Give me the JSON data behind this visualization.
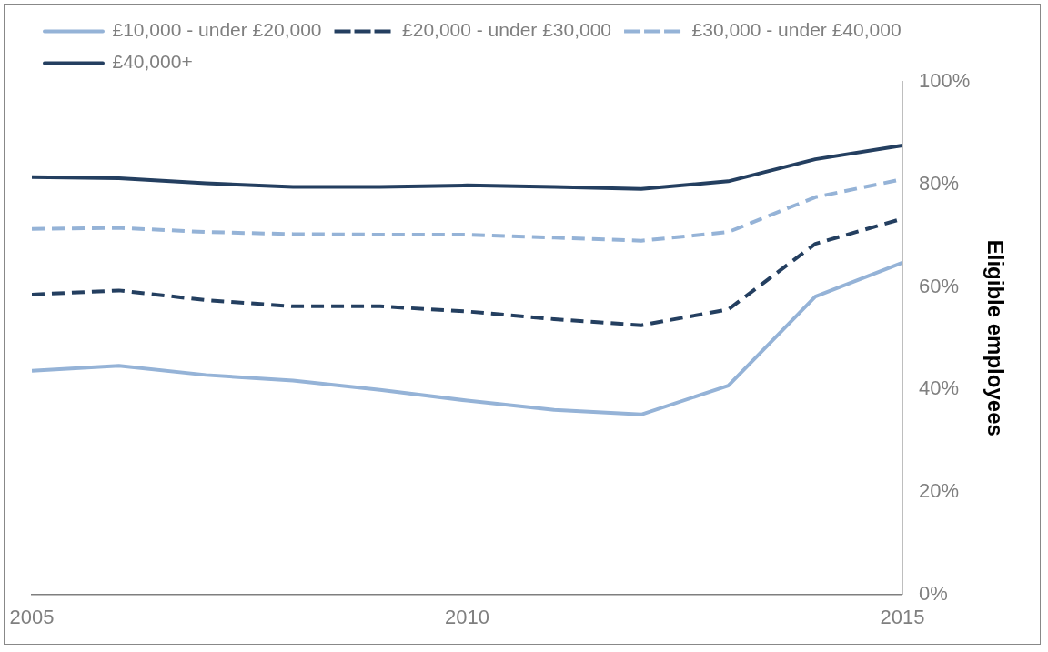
{
  "chart_data": {
    "type": "line",
    "ylabel": "Eligible employees",
    "x": [
      2005,
      2006,
      2007,
      2008,
      2009,
      2010,
      2011,
      2012,
      2013,
      2014,
      2015
    ],
    "series": [
      {
        "name": "£10,000 - under £20,000",
        "color": "#95b3d7",
        "line_style": "solid",
        "values": [
          43.6,
          44.6,
          42.8,
          41.7,
          39.9,
          37.8,
          36.0,
          35.1,
          40.7,
          58.1,
          64.7
        ]
      },
      {
        "name": "£20,000 - under £30,000",
        "color": "#243f60",
        "line_style": "dashed",
        "values": [
          58.5,
          59.3,
          57.4,
          56.2,
          56.2,
          55.2,
          53.7,
          52.5,
          55.6,
          68.4,
          73.3
        ]
      },
      {
        "name": "£30,000 - under £40,000",
        "color": "#95b3d7",
        "line_style": "dashed",
        "values": [
          71.3,
          71.5,
          70.7,
          70.3,
          70.2,
          70.2,
          69.6,
          69.0,
          70.7,
          77.5,
          81.0
        ]
      },
      {
        "name": "£40,000+",
        "color": "#243f60",
        "line_style": "solid",
        "values": [
          81.4,
          81.2,
          80.2,
          79.5,
          79.5,
          79.8,
          79.5,
          79.1,
          80.6,
          84.9,
          87.6
        ]
      }
    ],
    "xlim": [
      2005,
      2015
    ],
    "xticks": [
      2005,
      2010,
      2015
    ],
    "ylim": [
      0,
      100
    ],
    "yticks": [
      {
        "value": 0,
        "label": "0%"
      },
      {
        "value": 20,
        "label": "20%"
      },
      {
        "value": 40,
        "label": "40%"
      },
      {
        "value": 60,
        "label": "60%"
      },
      {
        "value": 80,
        "label": "80%"
      },
      {
        "value": 100,
        "label": "100%"
      }
    ],
    "grid": false,
    "legend": "top",
    "marker": "none"
  }
}
